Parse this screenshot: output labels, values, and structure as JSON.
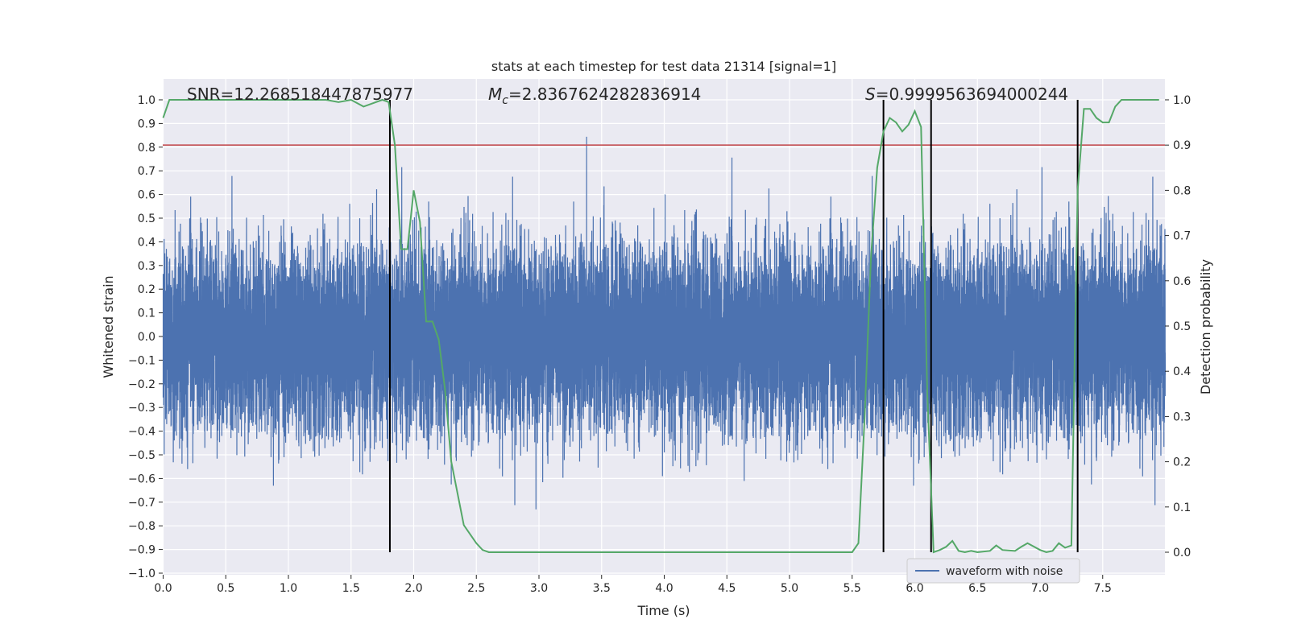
{
  "chart_data": {
    "type": "line",
    "title": "stats at each timestep for test data 21314 [signal=1]",
    "xlabel": "Time (s)",
    "ylabel": "Whitened strain",
    "y2label": "Detection probability",
    "xlim": [
      0.0,
      8.0
    ],
    "ylim": [
      -1.0,
      1.0
    ],
    "y2lim": [
      -0.04,
      1.04
    ],
    "x_ticks": [
      0.0,
      0.5,
      1.0,
      1.5,
      2.0,
      2.5,
      3.0,
      3.5,
      4.0,
      4.5,
      5.0,
      5.5,
      6.0,
      6.5,
      7.0,
      7.5
    ],
    "x_tick_labels": [
      "0.0",
      "0.5",
      "1.0",
      "1.5",
      "2.0",
      "2.5",
      "3.0",
      "3.5",
      "4.0",
      "4.5",
      "5.0",
      "5.5",
      "6.0",
      "6.5",
      "7.0",
      "7.5"
    ],
    "y_ticks": [
      -1.0,
      -0.9,
      -0.8,
      -0.7,
      -0.6,
      -0.5,
      -0.4,
      -0.3,
      -0.2,
      -0.1,
      0.0,
      0.1,
      0.2,
      0.3,
      0.4,
      0.5,
      0.6,
      0.7,
      0.8,
      0.9,
      1.0
    ],
    "y_tick_labels": [
      "−1.0",
      "−0.9",
      "−0.8",
      "−0.7",
      "−0.6",
      "−0.5",
      "−0.4",
      "−0.3",
      "−0.2",
      "−0.1",
      "0.0",
      "0.1",
      "0.2",
      "0.3",
      "0.4",
      "0.5",
      "0.6",
      "0.7",
      "0.8",
      "0.9",
      "1.0"
    ],
    "y2_ticks": [
      0.0,
      0.1,
      0.2,
      0.3,
      0.4,
      0.5,
      0.6,
      0.7,
      0.8,
      0.9,
      1.0
    ],
    "y2_tick_labels": [
      "0.0",
      "0.1",
      "0.2",
      "0.3",
      "0.4",
      "0.5",
      "0.6",
      "0.7",
      "0.8",
      "0.9",
      "1.0"
    ],
    "annotations": {
      "snr": "SNR=12.268518447875977",
      "mc_symbol": "M",
      "mc_sub": "c",
      "mc_value": "=2.8367624282836914",
      "s_symbol": "S",
      "s_value": "=0.9999563694000244"
    },
    "threshold_line": {
      "axis": "y2",
      "value": 0.9,
      "color": "#c44e52"
    },
    "vertical_markers": [
      1.81,
      5.75,
      6.13,
      7.3
    ],
    "waveform": {
      "name": "waveform with noise",
      "color": "#4c72b0",
      "sample_rate_hz": 2048,
      "duration_s": 8.0,
      "envelope_abs": 0.45,
      "peak_abs": 0.94
    },
    "detection_probability": {
      "color": "#55a868",
      "x": [
        0.0,
        0.05,
        0.1,
        0.2,
        0.3,
        0.4,
        0.5,
        0.6,
        0.7,
        0.8,
        0.9,
        1.0,
        1.1,
        1.2,
        1.3,
        1.4,
        1.5,
        1.6,
        1.7,
        1.75,
        1.8,
        1.85,
        1.9,
        1.95,
        2.0,
        2.05,
        2.1,
        2.15,
        2.2,
        2.25,
        2.3,
        2.4,
        2.45,
        2.5,
        2.55,
        2.6,
        2.7,
        2.8,
        3.0,
        3.2,
        3.4,
        3.5,
        3.6,
        3.8,
        4.0,
        4.1,
        4.2,
        4.3,
        4.4,
        4.5,
        4.6,
        4.8,
        5.0,
        5.2,
        5.3,
        5.4,
        5.5,
        5.55,
        5.6,
        5.65,
        5.7,
        5.75,
        5.8,
        5.85,
        5.9,
        5.95,
        6.0,
        6.05,
        6.1,
        6.13,
        6.15,
        6.2,
        6.25,
        6.3,
        6.35,
        6.4,
        6.45,
        6.5,
        6.6,
        6.65,
        6.7,
        6.8,
        6.85,
        6.9,
        7.0,
        7.05,
        7.1,
        7.15,
        7.2,
        7.25,
        7.3,
        7.35,
        7.4,
        7.45,
        7.5,
        7.55,
        7.6,
        7.65,
        7.7,
        7.8,
        7.95
      ],
      "y": [
        0.96,
        1.0,
        1.0,
        1.0,
        1.0,
        1.0,
        1.0,
        1.0,
        1.0,
        1.0,
        1.0,
        1.0,
        1.0,
        1.0,
        1.0,
        0.995,
        1.0,
        0.985,
        0.995,
        1.0,
        0.995,
        0.9,
        0.67,
        0.67,
        0.8,
        0.73,
        0.51,
        0.51,
        0.47,
        0.36,
        0.2,
        0.06,
        0.04,
        0.02,
        0.005,
        0.0,
        0.0,
        0.0,
        0.0,
        0.0,
        0.0,
        0.0,
        0.0,
        0.0,
        0.0,
        0.0,
        0.0,
        0.0,
        0.0,
        0.0,
        0.0,
        0.0,
        0.0,
        0.0,
        0.0,
        0.0,
        0.0,
        0.02,
        0.3,
        0.65,
        0.85,
        0.93,
        0.96,
        0.95,
        0.93,
        0.945,
        0.975,
        0.94,
        0.35,
        0.14,
        0.0,
        0.005,
        0.012,
        0.025,
        0.003,
        0.0,
        0.003,
        0.0,
        0.003,
        0.015,
        0.005,
        0.003,
        0.012,
        0.02,
        0.005,
        0.0,
        0.003,
        0.02,
        0.01,
        0.015,
        0.8,
        0.98,
        0.98,
        0.96,
        0.95,
        0.95,
        0.985,
        1.0,
        1.0,
        1.0,
        1.0
      ]
    },
    "legend": {
      "position": "lower-right",
      "entries": [
        "waveform with noise"
      ]
    },
    "grid": true
  }
}
